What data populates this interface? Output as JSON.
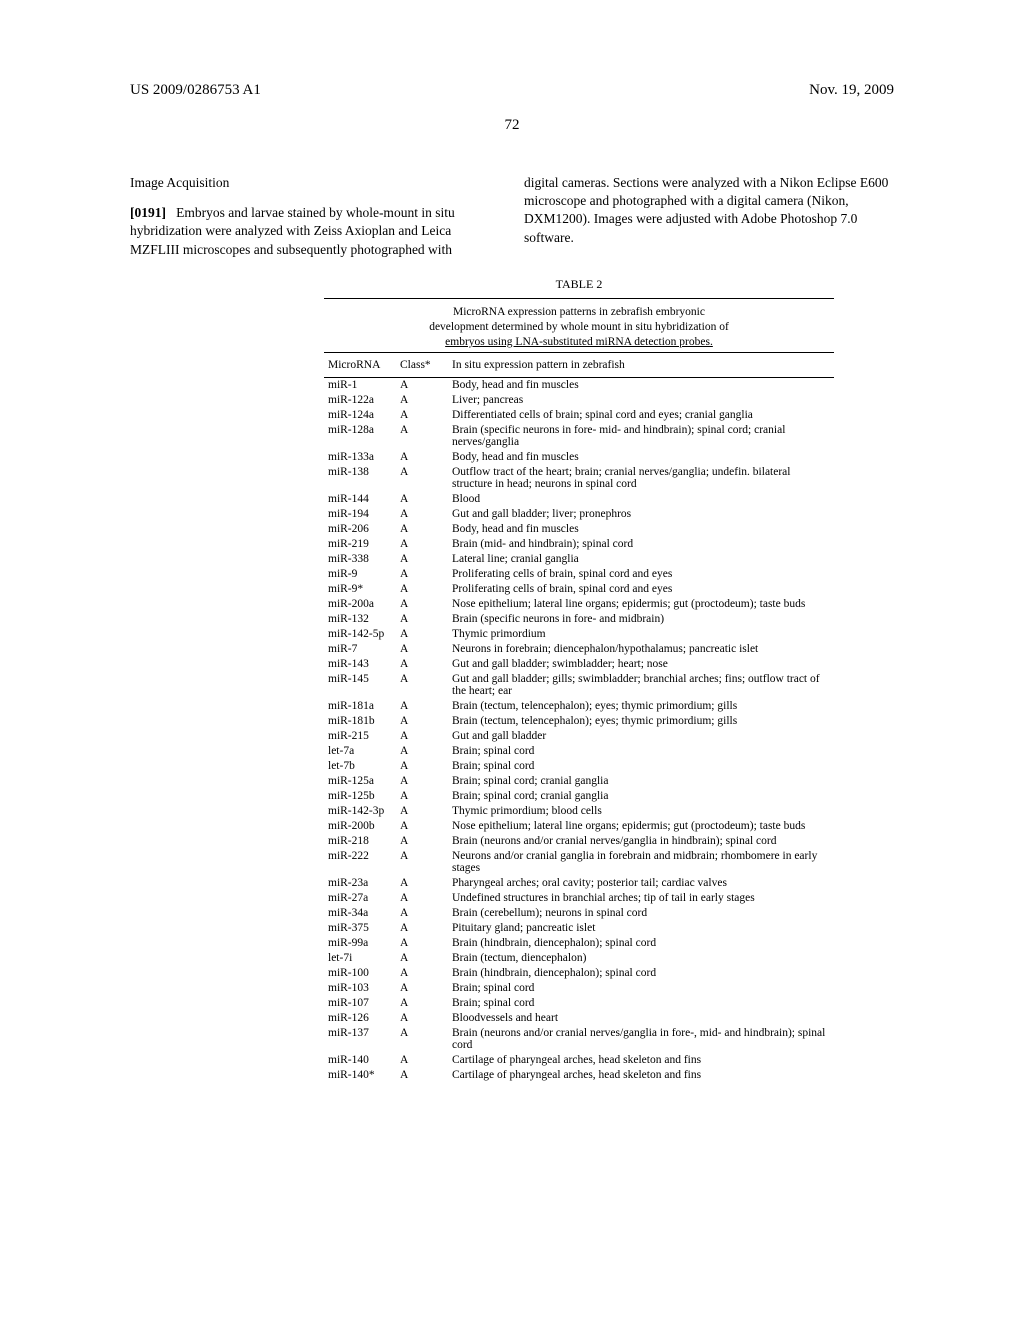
{
  "header": {
    "left": "US 2009/0286753 A1",
    "right": "Nov. 19, 2009"
  },
  "page_number": "72",
  "left_column": {
    "section_heading": "Image Acquisition",
    "paragraph_number": "[0191]",
    "paragraph_text": "Embryos and larvae stained by whole-mount in situ hybridization were analyzed with Zeiss Axioplan and Leica MZFLIII microscopes and subsequently photographed with"
  },
  "right_column": {
    "paragraph_text": "digital cameras. Sections were analyzed with a Nikon Eclipse E600 microscope and photographed with a digital camera (Nikon, DXM1200). Images were adjusted with Adobe Photoshop 7.0 software."
  },
  "table": {
    "label": "TABLE 2",
    "caption_line1": "MicroRNA expression patterns in zebrafish embryonic",
    "caption_line2": "development determined by whole mount in situ hybridization of",
    "caption_line3": "embryos using LNA-substituted miRNA detection probes.",
    "columns": {
      "c1": "MicroRNA",
      "c2": "Class*",
      "c3": "In situ expression pattern in zebrafish"
    },
    "rows": [
      {
        "m": "miR-1",
        "c": "A",
        "p": "Body, head and fin muscles"
      },
      {
        "m": "miR-122a",
        "c": "A",
        "p": "Liver; pancreas"
      },
      {
        "m": "miR-124a",
        "c": "A",
        "p": "Differentiated cells of brain; spinal cord and eyes; cranial ganglia"
      },
      {
        "m": "miR-128a",
        "c": "A",
        "p": "Brain (specific neurons in fore- mid- and hindbrain); spinal cord; cranial nerves/ganglia"
      },
      {
        "m": "miR-133a",
        "c": "A",
        "p": "Body, head and fin muscles"
      },
      {
        "m": "miR-138",
        "c": "A",
        "p": "Outflow tract of the heart; brain; cranial nerves/ganglia; undefin. bilateral structure in head; neurons in spinal cord"
      },
      {
        "m": "miR-144",
        "c": "A",
        "p": "Blood"
      },
      {
        "m": "miR-194",
        "c": "A",
        "p": "Gut and gall bladder; liver; pronephros"
      },
      {
        "m": "miR-206",
        "c": "A",
        "p": "Body, head and fin muscles"
      },
      {
        "m": "miR-219",
        "c": "A",
        "p": "Brain (mid- and hindbrain); spinal cord"
      },
      {
        "m": "miR-338",
        "c": "A",
        "p": "Lateral line; cranial ganglia"
      },
      {
        "m": "miR-9",
        "c": "A",
        "p": "Proliferating cells of brain, spinal cord and eyes"
      },
      {
        "m": "miR-9*",
        "c": "A",
        "p": "Proliferating cells of brain, spinal cord and eyes"
      },
      {
        "m": "miR-200a",
        "c": "A",
        "p": "Nose epithelium; lateral line organs; epidermis; gut (proctodeum); taste buds"
      },
      {
        "m": "miR-132",
        "c": "A",
        "p": "Brain (specific neurons in fore- and midbrain)"
      },
      {
        "m": "miR-142-5p",
        "c": "A",
        "p": "Thymic primordium"
      },
      {
        "m": "miR-7",
        "c": "A",
        "p": "Neurons in forebrain; diencephalon/hypothalamus; pancreatic islet"
      },
      {
        "m": "miR-143",
        "c": "A",
        "p": "Gut and gall bladder; swimbladder; heart; nose"
      },
      {
        "m": "miR-145",
        "c": "A",
        "p": "Gut and gall bladder; gills; swimbladder; branchial arches; fins; outflow tract of the heart; ear"
      },
      {
        "m": "miR-181a",
        "c": "A",
        "p": "Brain (tectum, telencephalon); eyes; thymic primordium; gills"
      },
      {
        "m": "miR-181b",
        "c": "A",
        "p": "Brain (tectum, telencephalon); eyes; thymic primordium; gills"
      },
      {
        "m": "miR-215",
        "c": "A",
        "p": "Gut and gall bladder"
      },
      {
        "m": "let-7a",
        "c": "A",
        "p": "Brain; spinal cord"
      },
      {
        "m": "let-7b",
        "c": "A",
        "p": "Brain; spinal cord"
      },
      {
        "m": "miR-125a",
        "c": "A",
        "p": "Brain; spinal cord; cranial ganglia"
      },
      {
        "m": "miR-125b",
        "c": "A",
        "p": "Brain; spinal cord; cranial ganglia"
      },
      {
        "m": "miR-142-3p",
        "c": "A",
        "p": "Thymic primordium; blood cells"
      },
      {
        "m": "miR-200b",
        "c": "A",
        "p": "Nose epithelium; lateral line organs; epidermis; gut (proctodeum); taste buds"
      },
      {
        "m": "miR-218",
        "c": "A",
        "p": "Brain (neurons and/or cranial nerves/ganglia in hindbrain); spinal cord"
      },
      {
        "m": "miR-222",
        "c": "A",
        "p": "Neurons and/or cranial ganglia in forebrain and midbrain; rhombomere in early stages"
      },
      {
        "m": "miR-23a",
        "c": "A",
        "p": "Pharyngeal arches; oral cavity; posterior tail; cardiac valves"
      },
      {
        "m": "miR-27a",
        "c": "A",
        "p": "Undefined structures in branchial arches; tip of tail in early stages"
      },
      {
        "m": "miR-34a",
        "c": "A",
        "p": "Brain (cerebellum); neurons in spinal cord"
      },
      {
        "m": "miR-375",
        "c": "A",
        "p": "Pituitary gland; pancreatic islet"
      },
      {
        "m": "miR-99a",
        "c": "A",
        "p": "Brain (hindbrain, diencephalon); spinal cord"
      },
      {
        "m": "let-7i",
        "c": "A",
        "p": "Brain (tectum, diencephalon)"
      },
      {
        "m": "miR-100",
        "c": "A",
        "p": "Brain (hindbrain, diencephalon); spinal cord"
      },
      {
        "m": "miR-103",
        "c": "A",
        "p": "Brain; spinal cord"
      },
      {
        "m": "miR-107",
        "c": "A",
        "p": "Brain; spinal cord"
      },
      {
        "m": "miR-126",
        "c": "A",
        "p": "Bloodvessels and heart"
      },
      {
        "m": "miR-137",
        "c": "A",
        "p": "Brain (neurons and/or cranial nerves/ganglia in fore-, mid- and hindbrain); spinal cord"
      },
      {
        "m": "miR-140",
        "c": "A",
        "p": "Cartilage of pharyngeal arches, head skeleton and fins"
      },
      {
        "m": "miR-140*",
        "c": "A",
        "p": "Cartilage of pharyngeal arches, head skeleton and fins"
      }
    ]
  }
}
